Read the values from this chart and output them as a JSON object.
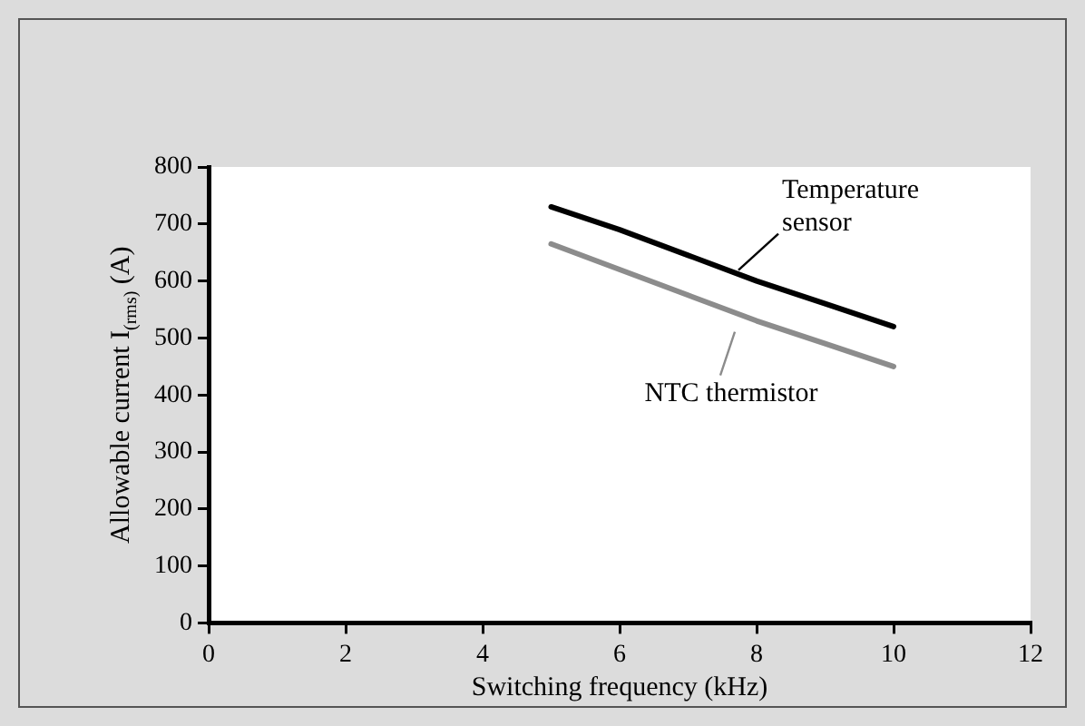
{
  "chart_data": {
    "type": "line",
    "xlabel": "Switching frequency (kHz)",
    "ylabel": "Allowable current I$_{(rms)}$ (A)",
    "x": [
      5,
      6,
      7,
      8,
      9,
      10
    ],
    "series": [
      {
        "name": "Temperature sensor",
        "color": "#000000",
        "values": [
          730,
          690,
          645,
          600,
          560,
          520
        ]
      },
      {
        "name": "NTC thermistor",
        "color": "#8c8c8c",
        "values": [
          665,
          620,
          575,
          530,
          490,
          450
        ]
      }
    ],
    "xlim": [
      0,
      12
    ],
    "xticks": [
      0,
      2,
      4,
      6,
      8,
      10,
      12
    ],
    "ylim": [
      0,
      800
    ],
    "yticks": [
      0,
      100,
      200,
      300,
      400,
      500,
      600,
      700,
      800
    ],
    "marker": "none",
    "line_style": "solid"
  }
}
